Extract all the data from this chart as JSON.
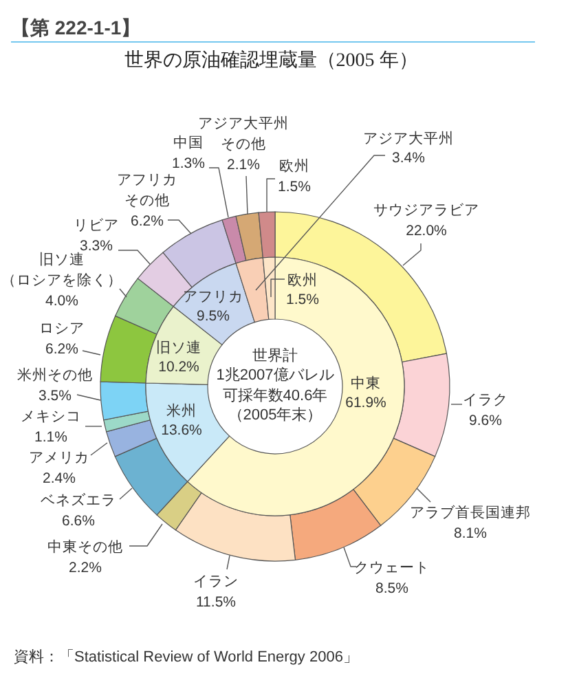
{
  "chart_data": [
    {
      "type": "donut",
      "title": "世界の原油確認埋蔵量（2005 年）",
      "categories": [
        "サウジアラビア",
        "イラク",
        "アラブ首長国連邦",
        "クウェート",
        "イラン",
        "中東その他",
        "ベネズエラ",
        "アメリカ",
        "メキシコ",
        "米州その他",
        "ロシア",
        "旧ソ連（ロシアを除く）",
        "リビア",
        "アフリカその他",
        "中国",
        "アジア大平州その他",
        "欧州"
      ],
      "values": [
        22.0,
        9.6,
        8.1,
        8.5,
        11.5,
        2.2,
        6.6,
        2.4,
        1.1,
        3.5,
        6.2,
        4.0,
        3.3,
        6.2,
        1.3,
        2.1,
        1.5
      ],
      "value_labels": [
        "22.0%",
        "9.6%",
        "8.1%",
        "8.5%",
        "11.5%",
        "2.2%",
        "6.6%",
        "2.4%",
        "1.1%",
        "3.5%",
        "6.2%",
        "4.0%",
        "3.3%",
        "6.2%",
        "1.3%",
        "2.1%",
        "1.5%"
      ],
      "colors": [
        "#fdf59a",
        "#fbd3d6",
        "#fdd08e",
        "#f5a97d",
        "#fde1c3",
        "#d9cf85",
        "#6cb2d1",
        "#98b3e0",
        "#9cd9c8",
        "#7dd3f5",
        "#8dc63f",
        "#9fd29c",
        "#e3cde3",
        "#cbc5e4",
        "#c98aaa",
        "#d5a874",
        "#d08a8a"
      ],
      "annotations": [
        "【第 222-1-1】",
        "資料：「Statistical Review of World Energy 2006」"
      ]
    },
    {
      "type": "donut",
      "categories": [
        "中東",
        "米州",
        "旧ソ連",
        "アフリカ",
        "アジア大平州",
        "欧州"
      ],
      "values": [
        61.9,
        13.6,
        10.2,
        9.5,
        3.4,
        1.5
      ],
      "value_labels": [
        "61.9%",
        "13.6%",
        "10.2%",
        "9.5%",
        "3.4%",
        "1.5%"
      ],
      "colors": [
        "#fff9cc",
        "#c9e9f8",
        "#eaf2cc",
        "#c9d8f0",
        "#f9cfb5",
        "#fde5c8"
      ],
      "annotations": [
        "世界計",
        "1兆2007億バレル",
        "可採年数40.6年",
        "（2005年末）"
      ]
    }
  ]
}
